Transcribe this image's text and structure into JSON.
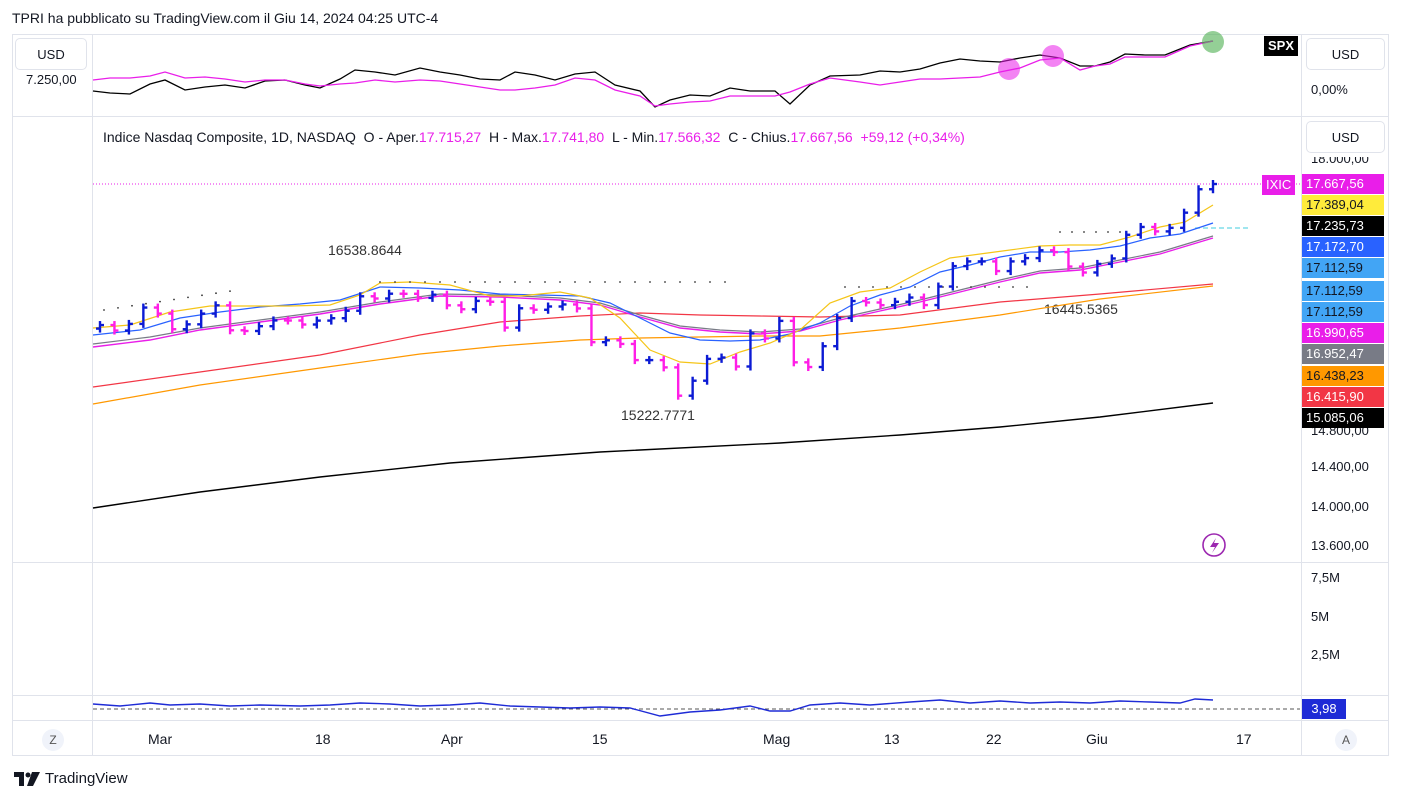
{
  "header": {
    "publisher_text": "TPRI ha pubblicato su TradingView.com il Giu 14, 2024 04:25 UTC-4"
  },
  "footer": {
    "brand": "TradingView"
  },
  "currency_buttons": {
    "top_left": "USD",
    "top_right": "USD",
    "main_right": "USD"
  },
  "top_pane": {
    "left_axis_label": "7.250,00",
    "right_axis_label": "0,00%",
    "tag": "SPX"
  },
  "legend": {
    "title": "Indice Nasdaq Composite, 1D, NASDAQ",
    "open_label": "O - Aper.",
    "open": "17.715,27",
    "high_label": "H - Max.",
    "high": "17.741,80",
    "low_label": "L - Min.",
    "low": "17.566,32",
    "close_label": "C - Chius.",
    "close": "17.667,56",
    "change": "+59,12 (+0,34%)"
  },
  "symbol_tag": "IXIC",
  "price_tags": [
    {
      "text": "17.667,56",
      "bg": "#e91ee9",
      "fg": "#ffffff"
    },
    {
      "text": "17.389,04",
      "bg": "#ffeb3b",
      "fg": "#131722"
    },
    {
      "text": "17.235,73",
      "bg": "#000000",
      "fg": "#ffffff"
    },
    {
      "text": "17.172,70",
      "bg": "#2962ff",
      "fg": "#ffffff"
    },
    {
      "text": "17.112,59",
      "bg": "#42a5f5",
      "fg": "#131722"
    },
    {
      "text": "17.112,59",
      "bg": "#42a5f5",
      "fg": "#131722"
    },
    {
      "text": "17.112,59",
      "bg": "#42a5f5",
      "fg": "#131722"
    },
    {
      "text": "16.990,65",
      "bg": "#e91ee9",
      "fg": "#ffffff"
    },
    {
      "text": "16.952,47",
      "bg": "#787b86",
      "fg": "#ffffff"
    },
    {
      "text": "16.438,23",
      "bg": "#ff9800",
      "fg": "#131722"
    },
    {
      "text": "16.415,90",
      "bg": "#f23645",
      "fg": "#ffffff"
    },
    {
      "text": "15.085,06",
      "bg": "#000000",
      "fg": "#ffffff"
    }
  ],
  "price_axis": [
    "18.000,00",
    "14.800,00",
    "14.400,00",
    "14.000,00",
    "13.600,00"
  ],
  "volume_axis": [
    "7,5M",
    "5M",
    "2,5M"
  ],
  "bottom_pane": {
    "value_tag": "3,98"
  },
  "annotations": {
    "high_label": "16538.8644",
    "low_label": "15222.7771",
    "mid_label": "16445.5365"
  },
  "time_axis": [
    "Mar",
    "18",
    "Apr",
    "15",
    "Mag",
    "13",
    "22",
    "Giu",
    "17"
  ],
  "axis_buttons": {
    "left": "Z",
    "right": "A"
  },
  "chart_data": {
    "type": "ohlc",
    "title": "Indice Nasdaq Composite, 1D, NASDAQ",
    "x_range": [
      "Feb 26, 2024",
      "Jun 13, 2024"
    ],
    "ylim": [
      13600,
      18000
    ],
    "colors": {
      "up": "#0c1bd4",
      "down": "#ff1ee6"
    },
    "close": [
      16078,
      16016,
      16091,
      16275,
      16207,
      16031,
      16086,
      16207,
      16300,
      16019,
      16011,
      16065,
      16130,
      16129,
      16084,
      16128,
      16155,
      16239,
      16402,
      16377,
      16431,
      16430,
      16384,
      16420,
      16300,
      16256,
      16350,
      16340,
      16049,
      16267,
      16250,
      16287,
      16310,
      16265,
      15885,
      15906,
      15865,
      15683,
      15683,
      15601,
      15282,
      15451,
      15697,
      15712,
      15611,
      15984,
      15927,
      16125,
      15658,
      15605,
      15840,
      16157,
      16349,
      16332,
      16302,
      16340,
      16388,
      16303,
      16512,
      16742,
      16795,
      16795,
      16686,
      16795,
      16832,
      16920,
      16900,
      16737,
      16670,
      16767,
      16828,
      17095,
      17183,
      17133,
      17173,
      17344,
      17608,
      17667
    ],
    "series": [
      {
        "name": "17.389,04",
        "color": "#f5c518",
        "kind": "ma",
        "final": 17389.04
      },
      {
        "name": "17.172,70",
        "color": "#2962ff",
        "kind": "ma",
        "final": 17172.7
      },
      {
        "name": "17.112,59",
        "color": "#42a5f5",
        "kind": "ma",
        "final": 17112.59
      },
      {
        "name": "16.990,65",
        "color": "#e91ee9",
        "kind": "ma",
        "final": 16990.65
      },
      {
        "name": "16.952,47",
        "color": "#787b86",
        "kind": "ma",
        "final": 16952.47
      },
      {
        "name": "16.438,23",
        "color": "#ff9800",
        "kind": "ma",
        "final": 16438.23
      },
      {
        "name": "16.415,90",
        "color": "#f23645",
        "kind": "ma",
        "final": 16415.9
      },
      {
        "name": "15.085,06",
        "color": "#000000",
        "kind": "ma",
        "final": 15085.06
      }
    ]
  }
}
